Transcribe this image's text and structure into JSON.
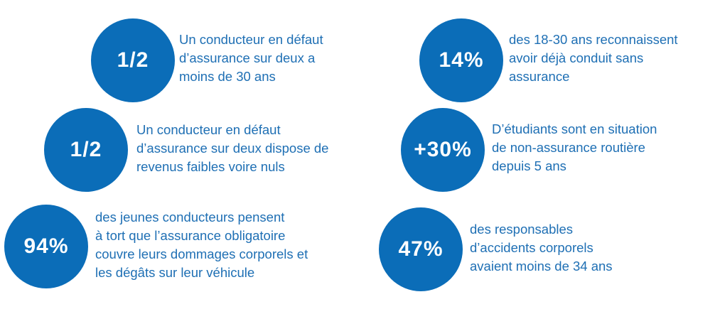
{
  "colors": {
    "circle_fill": "#0b6db8",
    "circle_text": "#ffffff",
    "description_text": "#1e6fb4",
    "background": "#ffffff"
  },
  "stats": [
    {
      "value": "1/2",
      "lines": [
        "Un conducteur en défaut",
        "d’assurance sur deux a",
        "moins de 30 ans"
      ]
    },
    {
      "value": "14%",
      "lines": [
        "des 18-30 ans reconnaissent",
        "avoir déjà conduit sans",
        "assurance"
      ]
    },
    {
      "value": "1/2",
      "lines": [
        "Un conducteur en défaut",
        "d’assurance sur deux dispose de",
        "revenus faibles voire nuls"
      ]
    },
    {
      "value": "+30%",
      "lines": [
        "D’étudiants sont en situation",
        "de non-assurance routière",
        "depuis 5 ans"
      ]
    },
    {
      "value": "94%",
      "lines": [
        "des jeunes conducteurs pensent",
        "à tort que l’assurance obligatoire",
        "couvre leurs dommages corporels et",
        "les dégâts sur leur véhicule"
      ]
    },
    {
      "value": "47%",
      "lines": [
        "des responsables",
        "d’accidents corporels",
        "avaient moins de 34 ans"
      ]
    }
  ]
}
